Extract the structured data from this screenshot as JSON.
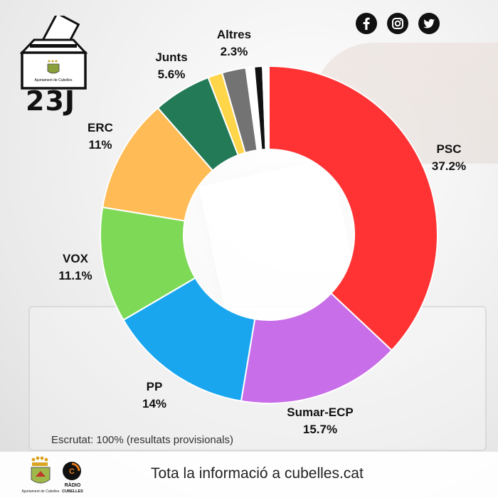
{
  "header": {
    "logo_title": "23J",
    "ballot_box_caption": "Ajuntament de Cubelles"
  },
  "social": [
    "facebook-icon",
    "instagram-icon",
    "twitter-icon"
  ],
  "chart_data": {
    "type": "pie",
    "donut": true,
    "title": "",
    "categories": [
      "PSC",
      "Sumar-ECP",
      "PP",
      "VOX",
      "ERC",
      "Junts",
      "",
      "",
      "",
      "",
      ""
    ],
    "values": [
      37.2,
      15.7,
      14,
      11.1,
      11,
      5.6,
      1.4,
      2.3,
      0.8,
      0.8,
      0.6
    ],
    "labels": [
      {
        "name": "PSC",
        "value": "37.2%"
      },
      {
        "name": "Sumar-ECP",
        "value": "15.7%"
      },
      {
        "name": "PP",
        "value": "14%"
      },
      {
        "name": "VOX",
        "value": "11.1%"
      },
      {
        "name": "ERC",
        "value": "11%"
      },
      {
        "name": "Junts",
        "value": "5.6%"
      },
      {
        "name": "Altres",
        "value": "2.3%"
      }
    ],
    "colors": [
      "#ff3333",
      "#c86ee8",
      "#1aa6ef",
      "#7ed957",
      "#ffbb55",
      "#237a57",
      "#ffd54a",
      "#737373",
      "#ffffff",
      "#111111",
      "#ffffff"
    ]
  },
  "footnote": "Escrutat: 100% (resultats provisionals)",
  "footer": {
    "text": "Tota la informació a cubelles.cat",
    "ajt_caption": "Ajuntament de Cubelles",
    "radio_caption_1": "RÀDIO",
    "radio_caption_2": "CUBELLES"
  }
}
